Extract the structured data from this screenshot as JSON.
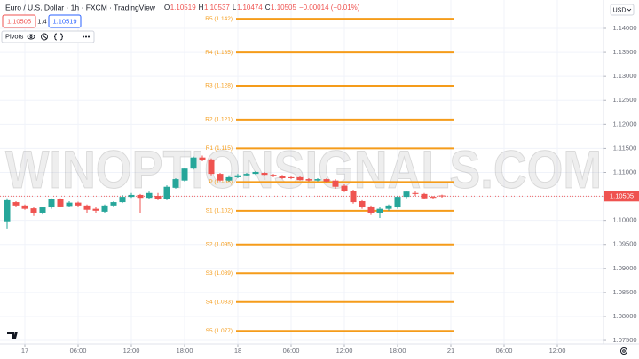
{
  "header": {
    "title": "Euro / U.S. Dollar · 1h · FXCM · TradingView",
    "ohlc": [
      {
        "key": "O",
        "text": "1.10519"
      },
      {
        "key": "H",
        "text": "1.10537"
      },
      {
        "key": "L",
        "text": "1.10474"
      },
      {
        "key": "C",
        "text": "1.10505"
      }
    ],
    "change": "−0.00014 (−0.01%)",
    "sell": "1.10505",
    "spread": "1.4",
    "buy": "1.10519",
    "indicator": "Pivots",
    "currency": "USD"
  },
  "chart_data": {
    "type": "candlestick",
    "watermark": "WINOPTIONSIGNALS.COM",
    "up_color": "#26a69a",
    "down_color": "#ef5350",
    "pivot_color": "#f59c1a",
    "grid": true,
    "x": [
      -2,
      -1,
      0,
      1,
      2,
      3,
      4,
      5,
      6,
      7,
      8,
      9,
      10,
      11,
      12,
      13,
      14,
      15,
      16,
      17,
      18,
      19,
      20,
      21,
      22,
      23,
      24,
      25,
      26,
      27,
      28,
      29,
      30,
      31,
      32,
      33,
      34,
      35,
      36,
      37,
      38,
      39,
      40,
      41,
      42,
      43,
      44,
      45,
      46,
      47
    ],
    "open": [
      1.0998,
      1.1038,
      1.1031,
      1.1025,
      1.1016,
      1.1027,
      1.1044,
      1.103,
      1.1037,
      1.1031,
      1.1024,
      1.1018,
      1.1031,
      1.1038,
      1.1049,
      1.1053,
      1.1047,
      1.1051,
      1.1044,
      1.1068,
      1.1083,
      1.1108,
      1.1131,
      1.1127,
      1.1097,
      1.1083,
      1.109,
      1.1094,
      1.1097,
      1.1099,
      1.1095,
      1.1092,
      1.109,
      1.109,
      1.1086,
      1.1083,
      1.1086,
      1.1083,
      1.1072,
      1.1062,
      1.104,
      1.1029,
      1.1016,
      1.1024,
      1.1027,
      1.1049,
      1.1057,
      1.1055,
      1.1049,
      1.10519
    ],
    "high": [
      1.1046,
      1.104,
      1.1033,
      1.1027,
      1.1029,
      1.1046,
      1.1046,
      1.104,
      1.1039,
      1.1033,
      1.1027,
      1.1033,
      1.104,
      1.1053,
      1.1057,
      1.1055,
      1.106,
      1.1057,
      1.1073,
      1.1088,
      1.111,
      1.1133,
      1.1135,
      1.1129,
      1.1099,
      1.1094,
      1.1097,
      1.1099,
      1.1103,
      1.1101,
      1.1097,
      1.1095,
      1.1092,
      1.1092,
      1.1088,
      1.1088,
      1.1088,
      1.1086,
      1.1075,
      1.1064,
      1.1042,
      1.1031,
      1.1027,
      1.1033,
      1.1051,
      1.1062,
      1.1062,
      1.1057,
      1.1051,
      1.10537
    ],
    "low": [
      1.0983,
      1.1029,
      1.1022,
      1.1009,
      1.1014,
      1.1024,
      1.1027,
      1.1027,
      1.1029,
      1.1016,
      1.1016,
      1.1016,
      1.1029,
      1.1036,
      1.1047,
      1.1016,
      1.1044,
      1.1042,
      1.1042,
      1.1066,
      1.1081,
      1.1106,
      1.1123,
      1.1094,
      1.1081,
      1.1081,
      1.1088,
      1.1092,
      1.1095,
      1.1094,
      1.109,
      1.1086,
      1.1086,
      1.1083,
      1.1081,
      1.1081,
      1.1079,
      1.1066,
      1.1059,
      1.1035,
      1.1024,
      1.1013,
      1.1005,
      1.102,
      1.1024,
      1.1046,
      1.1051,
      1.1044,
      1.1044,
      1.10474
    ],
    "close": [
      1.1042,
      1.1031,
      1.1024,
      1.1016,
      1.1027,
      1.1044,
      1.1029,
      1.1037,
      1.1031,
      1.1022,
      1.102,
      1.1031,
      1.1038,
      1.1049,
      1.1053,
      1.1047,
      1.1057,
      1.1044,
      1.107,
      1.1086,
      1.1108,
      1.1131,
      1.1125,
      1.1097,
      1.1083,
      1.109,
      1.1094,
      1.1097,
      1.1101,
      1.1095,
      1.1092,
      1.1088,
      1.1088,
      1.1084,
      1.1083,
      1.1086,
      1.1081,
      1.107,
      1.1062,
      1.1038,
      1.1027,
      1.1016,
      1.1024,
      1.1031,
      1.1049,
      1.106,
      1.1055,
      1.1046,
      1.1047,
      1.10505
    ],
    "pivots": [
      {
        "label": "R5 (1.142)",
        "value": 1.142
      },
      {
        "label": "R4 (1.135)",
        "value": 1.135
      },
      {
        "label": "R3 (1.128)",
        "value": 1.128
      },
      {
        "label": "R2 (1.121)",
        "value": 1.121
      },
      {
        "label": "R1 (1.115)",
        "value": 1.115
      },
      {
        "label": "P (1.108)",
        "value": 1.108
      },
      {
        "label": "S1 (1.102)",
        "value": 1.102
      },
      {
        "label": "S2 (1.095)",
        "value": 1.095
      },
      {
        "label": "S3 (1.089)",
        "value": 1.089
      },
      {
        "label": "S4 (1.083)",
        "value": 1.083
      },
      {
        "label": "S5 (1.077)",
        "value": 1.077
      }
    ],
    "last_price": {
      "value": 1.10505,
      "label": "1.10505"
    },
    "xlim": [
      -2.8,
      65.2
    ],
    "ylim": [
      1.07427,
      1.14591
    ],
    "xticks": [
      {
        "value": 0,
        "label": "17"
      },
      {
        "value": 6,
        "label": "06:00"
      },
      {
        "value": 12,
        "label": "12:00"
      },
      {
        "value": 18,
        "label": "18:00"
      },
      {
        "value": 24,
        "label": "18"
      },
      {
        "value": 30,
        "label": "06:00"
      },
      {
        "value": 36,
        "label": "12:00"
      },
      {
        "value": 42,
        "label": "18:00"
      },
      {
        "value": 48,
        "label": "21"
      },
      {
        "value": 54,
        "label": "06:00"
      },
      {
        "value": 60,
        "label": "12:00"
      }
    ],
    "yticks": [
      {
        "value": 1.075,
        "label": "1.07500"
      },
      {
        "value": 1.08,
        "label": "1.08000"
      },
      {
        "value": 1.085,
        "label": "1.08500"
      },
      {
        "value": 1.09,
        "label": "1.09000"
      },
      {
        "value": 1.095,
        "label": "1.09500"
      },
      {
        "value": 1.1,
        "label": "1.10000"
      },
      {
        "value": 1.105,
        "label": "1.10500"
      },
      {
        "value": 1.11,
        "label": "1.11000"
      },
      {
        "value": 1.115,
        "label": "1.11500"
      },
      {
        "value": 1.12,
        "label": "1.12000"
      },
      {
        "value": 1.125,
        "label": "1.12500"
      },
      {
        "value": 1.13,
        "label": "1.13000"
      },
      {
        "value": 1.135,
        "label": "1.13500"
      },
      {
        "value": 1.14,
        "label": "1.14000"
      }
    ]
  }
}
